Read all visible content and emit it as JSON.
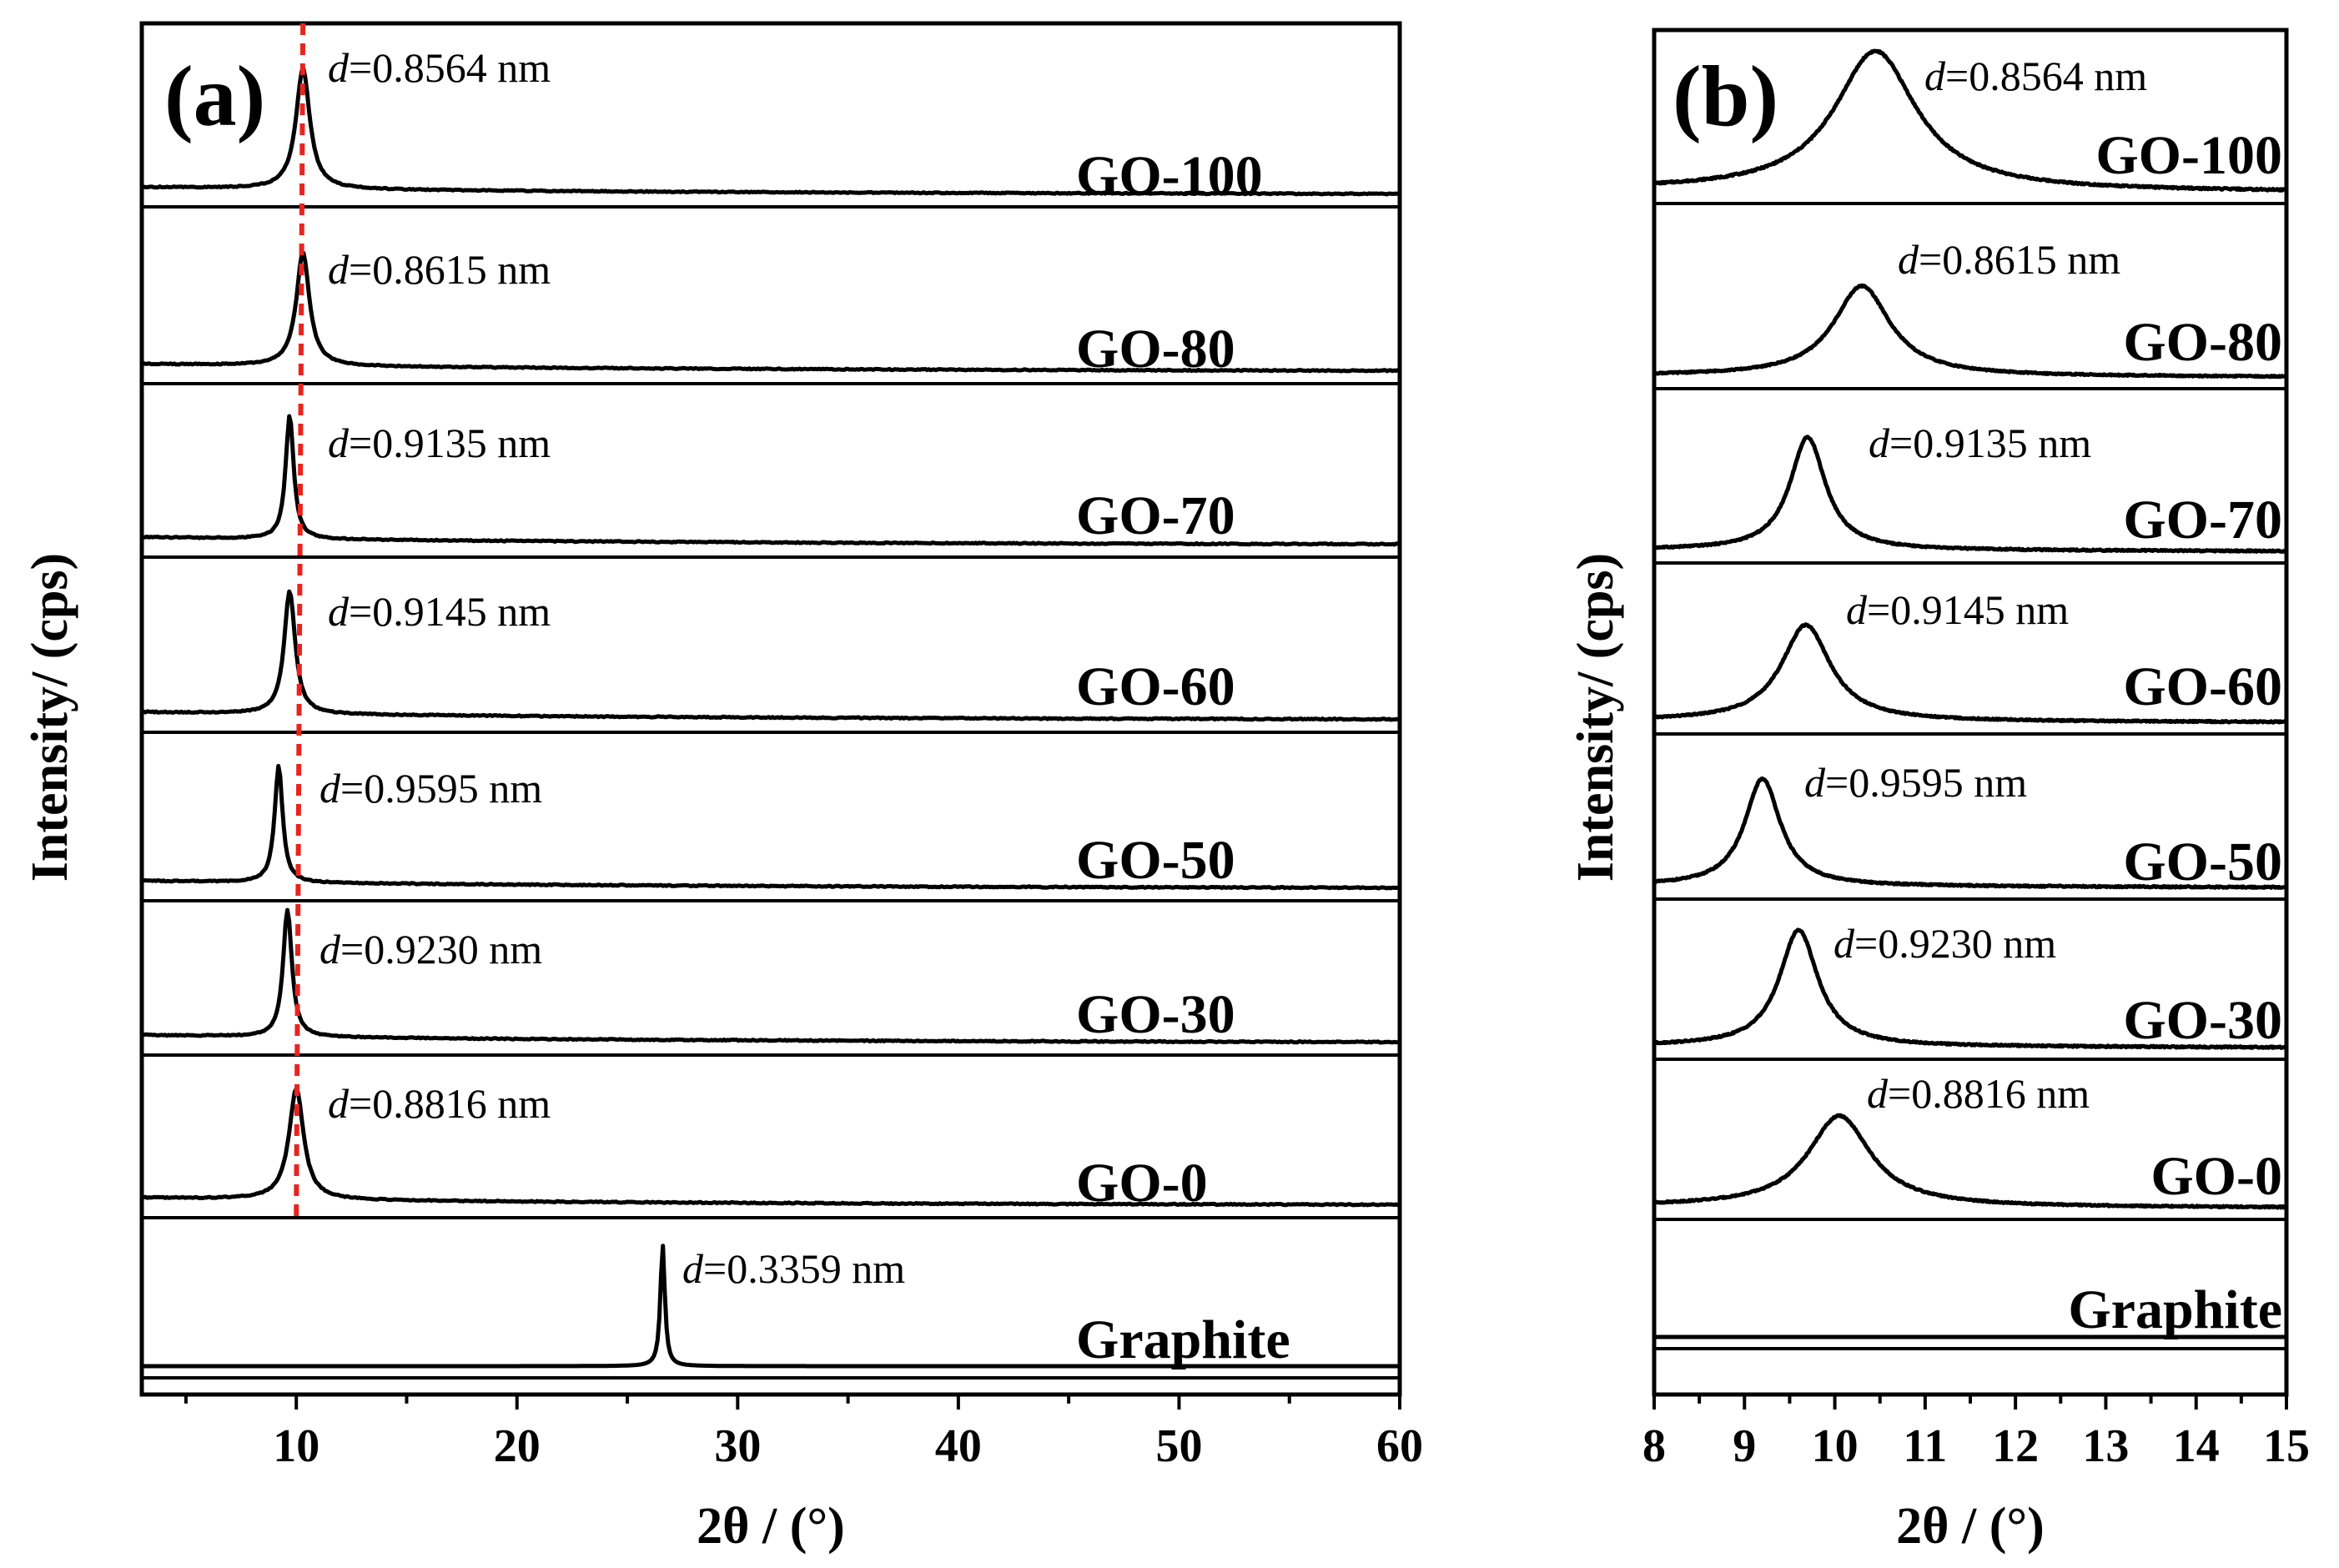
{
  "chart_data": [
    {
      "panel_label": "(a)",
      "type": "line",
      "xlabel": "2θ / (°)",
      "ylabel": "Intensity/ (cps)",
      "xlim": [
        3,
        60
      ],
      "xticks": [
        "10",
        "20",
        "30",
        "40",
        "50",
        "60"
      ],
      "reference_line": {
        "style": "dashed",
        "color": "#e8241f",
        "x_top": 10.3,
        "x_bottom": 10.0
      },
      "series": [
        {
          "name": "GO-100",
          "peak_2theta": 10.3,
          "d_label": "=0.8564 nm",
          "peak_height": 0.85,
          "peak_width": 0.38
        },
        {
          "name": "GO-80",
          "peak_2theta": 10.3,
          "d_label": "=0.8615 nm",
          "peak_height": 0.8,
          "peak_width": 0.36
        },
        {
          "name": "GO-70",
          "peak_2theta": 9.7,
          "d_label": "=0.9135 nm",
          "peak_height": 0.85,
          "peak_width": 0.22
        },
        {
          "name": "GO-60",
          "peak_2theta": 9.7,
          "d_label": "=0.9145 nm",
          "peak_height": 0.82,
          "peak_width": 0.3
        },
        {
          "name": "GO-50",
          "peak_2theta": 9.2,
          "d_label": "=0.9595 nm",
          "peak_height": 0.8,
          "peak_width": 0.22
        },
        {
          "name": "GO-30",
          "peak_2theta": 9.6,
          "d_label": "=0.9230 nm",
          "peak_height": 0.87,
          "peak_width": 0.24
        },
        {
          "name": "GO-0",
          "peak_2theta": 10.0,
          "d_label": "=0.8816 nm",
          "peak_height": 0.76,
          "peak_width": 0.4
        },
        {
          "name": "Graphite",
          "peak_2theta": 26.6,
          "d_label": "=0.3359 nm",
          "peak_height": 0.86,
          "peak_width": 0.12
        }
      ]
    },
    {
      "panel_label": "(b)",
      "type": "line",
      "xlabel": "2θ / (°)",
      "ylabel": "Intensity/ (cps)",
      "xlim": [
        8,
        15
      ],
      "xticks": [
        "8",
        "9",
        "10",
        "11",
        "12",
        "13",
        "14",
        "15"
      ],
      "series": [
        {
          "name": "GO-100",
          "peak_2theta": 10.45,
          "d_label": "=0.8564 nm",
          "peak_height": 0.88,
          "peak_width": 0.55
        },
        {
          "name": "GO-80",
          "peak_2theta": 10.3,
          "d_label": "=0.8615 nm",
          "peak_height": 0.72,
          "peak_width": 0.38
        },
        {
          "name": "GO-70",
          "peak_2theta": 9.7,
          "d_label": "=0.9135 nm",
          "peak_height": 0.82,
          "peak_width": 0.24
        },
        {
          "name": "GO-60",
          "peak_2theta": 9.68,
          "d_label": "=0.9145 nm",
          "peak_height": 0.72,
          "peak_width": 0.33
        },
        {
          "name": "GO-50",
          "peak_2theta": 9.2,
          "d_label": "=0.9595 nm",
          "peak_height": 0.78,
          "peak_width": 0.24
        },
        {
          "name": "GO-30",
          "peak_2theta": 9.6,
          "d_label": "=0.9230 nm",
          "peak_height": 0.82,
          "peak_width": 0.26
        },
        {
          "name": "GO-0",
          "peak_2theta": 10.05,
          "d_label": "=0.8816 nm",
          "peak_height": 0.68,
          "peak_width": 0.42
        },
        {
          "name": "Graphite",
          "peak_2theta": null,
          "d_label": "",
          "peak_height": 0,
          "peak_width": 0
        }
      ]
    }
  ],
  "d_symbol": "d"
}
